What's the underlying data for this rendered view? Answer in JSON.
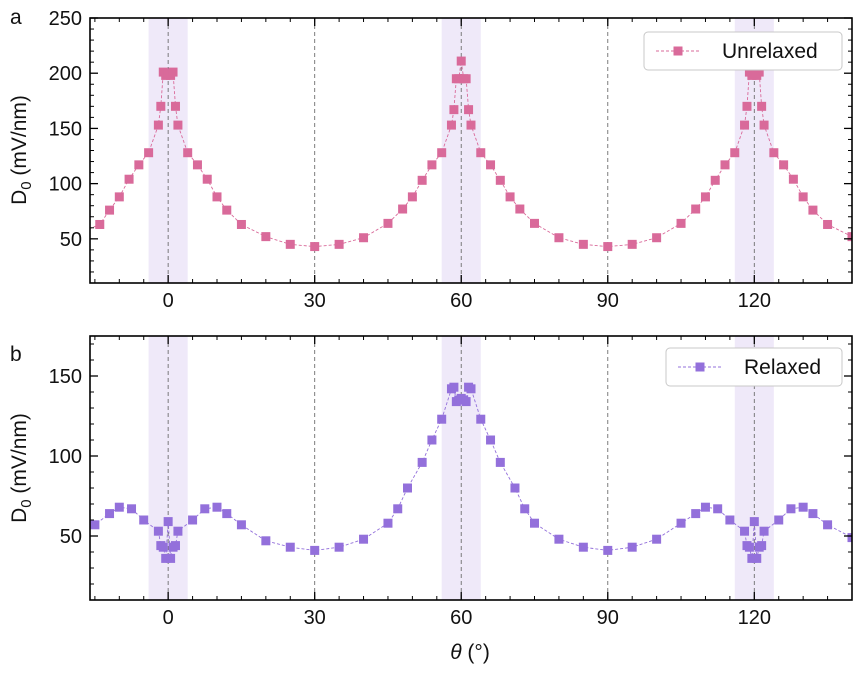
{
  "figure": {
    "xlabel_symbol": "θ",
    "xlabel_unit": " (°)"
  },
  "chart_data": [
    {
      "type": "line",
      "panel": "a",
      "ylabel_main": "D",
      "ylabel_sub": "0",
      "ylabel_rest": " (mV/nm)",
      "xlabel": "",
      "xlim": [
        -16,
        140
      ],
      "ylim": [
        10,
        250
      ],
      "xticks": [
        0,
        30,
        60,
        90,
        120
      ],
      "yticks": [
        50,
        100,
        150,
        200,
        250
      ],
      "vlines": [
        0,
        30,
        60,
        90,
        120
      ],
      "bands": [
        [
          -4,
          4
        ],
        [
          56,
          64
        ],
        [
          116,
          124
        ]
      ],
      "legend_position": "top-right",
      "series": [
        {
          "name": "Unrelaxed",
          "color": "#d96a9a",
          "marker": "square",
          "points": [
            [
              -20,
              52
            ],
            [
              -14,
              63
            ],
            [
              -12,
              76
            ],
            [
              -10,
              88
            ],
            [
              -8,
              104
            ],
            [
              -6,
              117
            ],
            [
              -4,
              128
            ],
            [
              -2,
              153
            ],
            [
              -1.5,
              170
            ],
            [
              -1,
              201
            ],
            [
              -0.5,
              198
            ],
            [
              0,
              200
            ],
            [
              0.5,
              198
            ],
            [
              1,
              201
            ],
            [
              1.5,
              170
            ],
            [
              2,
              153
            ],
            [
              4,
              128
            ],
            [
              6,
              117
            ],
            [
              8,
              104
            ],
            [
              10,
              88
            ],
            [
              12,
              76
            ],
            [
              15,
              63
            ],
            [
              20,
              52
            ],
            [
              25,
              45
            ],
            [
              30,
              43
            ],
            [
              35,
              45
            ],
            [
              40,
              51
            ],
            [
              45,
              64
            ],
            [
              48,
              77
            ],
            [
              50,
              88
            ],
            [
              52,
              103
            ],
            [
              54,
              117
            ],
            [
              56,
              128
            ],
            [
              58,
              153
            ],
            [
              58.5,
              167
            ],
            [
              59,
              195
            ],
            [
              59.5,
              195
            ],
            [
              60,
              211
            ],
            [
              60.5,
              195
            ],
            [
              61,
              195
            ],
            [
              61.5,
              167
            ],
            [
              62,
              153
            ],
            [
              64,
              128
            ],
            [
              66,
              117
            ],
            [
              68,
              103
            ],
            [
              70,
              88
            ],
            [
              72,
              77
            ],
            [
              75,
              64
            ],
            [
              80,
              51
            ],
            [
              85,
              45
            ],
            [
              90,
              43
            ],
            [
              95,
              45
            ],
            [
              100,
              51
            ],
            [
              105,
              64
            ],
            [
              108,
              77
            ],
            [
              110,
              88
            ],
            [
              112,
              103
            ],
            [
              114,
              117
            ],
            [
              116,
              128
            ],
            [
              118,
              153
            ],
            [
              118.5,
              170
            ],
            [
              119,
              201
            ],
            [
              119.5,
              198
            ],
            [
              120,
              200
            ],
            [
              120.5,
              198
            ],
            [
              121,
              201
            ],
            [
              121.5,
              170
            ],
            [
              122,
              153
            ],
            [
              124,
              128
            ],
            [
              126,
              117
            ],
            [
              128,
              104
            ],
            [
              130,
              88
            ],
            [
              132,
              76
            ],
            [
              135,
              63
            ],
            [
              140,
              52
            ]
          ]
        }
      ]
    },
    {
      "type": "line",
      "panel": "b",
      "ylabel_main": "D",
      "ylabel_sub": "0",
      "ylabel_rest": " (mV/nm)",
      "xlabel": "",
      "xlim": [
        -16,
        140
      ],
      "ylim": [
        10,
        175
      ],
      "xticks": [
        0,
        30,
        60,
        90,
        120
      ],
      "yticks": [
        50,
        100,
        150
      ],
      "vlines": [
        0,
        30,
        60,
        90,
        120
      ],
      "bands": [
        [
          -4,
          4
        ],
        [
          56,
          64
        ],
        [
          116,
          124
        ]
      ],
      "legend_position": "top-right",
      "series": [
        {
          "name": "Relaxed",
          "color": "#9370db",
          "marker": "square",
          "points": [
            [
              -20,
              49
            ],
            [
              -15,
              57
            ],
            [
              -12,
              64
            ],
            [
              -10,
              68
            ],
            [
              -7.5,
              67
            ],
            [
              -5,
              60
            ],
            [
              -2,
              53
            ],
            [
              -1.5,
              44
            ],
            [
              -1,
              43
            ],
            [
              -0.5,
              36
            ],
            [
              0,
              59
            ],
            [
              0.5,
              36
            ],
            [
              1,
              43
            ],
            [
              1.5,
              44
            ],
            [
              2,
              53
            ],
            [
              5,
              60
            ],
            [
              7.5,
              67
            ],
            [
              10,
              68
            ],
            [
              12,
              64
            ],
            [
              15,
              57
            ],
            [
              20,
              47
            ],
            [
              25,
              43
            ],
            [
              30,
              41
            ],
            [
              35,
              43
            ],
            [
              40,
              48
            ],
            [
              45,
              58
            ],
            [
              47,
              67
            ],
            [
              49,
              80
            ],
            [
              52,
              96
            ],
            [
              54,
              110
            ],
            [
              56,
              123
            ],
            [
              58,
              142
            ],
            [
              58.5,
              143
            ],
            [
              59,
              134
            ],
            [
              59.5,
              135
            ],
            [
              60,
              136
            ],
            [
              60.5,
              135
            ],
            [
              61,
              134
            ],
            [
              61.5,
              143
            ],
            [
              62,
              142
            ],
            [
              64,
              123
            ],
            [
              66,
              110
            ],
            [
              68,
              96
            ],
            [
              71,
              80
            ],
            [
              73,
              67
            ],
            [
              75,
              58
            ],
            [
              80,
              48
            ],
            [
              85,
              43
            ],
            [
              90,
              41
            ],
            [
              95,
              43
            ],
            [
              100,
              48
            ],
            [
              105,
              58
            ],
            [
              108,
              64
            ],
            [
              110,
              68
            ],
            [
              112.5,
              67
            ],
            [
              115,
              60
            ],
            [
              118,
              53
            ],
            [
              118.5,
              44
            ],
            [
              119,
              43
            ],
            [
              119.5,
              36
            ],
            [
              120,
              59
            ],
            [
              120.5,
              36
            ],
            [
              121,
              43
            ],
            [
              121.5,
              44
            ],
            [
              122,
              53
            ],
            [
              125,
              60
            ],
            [
              127.5,
              67
            ],
            [
              130,
              68
            ],
            [
              132,
              64
            ],
            [
              135,
              57
            ],
            [
              140,
              49
            ]
          ]
        }
      ]
    }
  ]
}
